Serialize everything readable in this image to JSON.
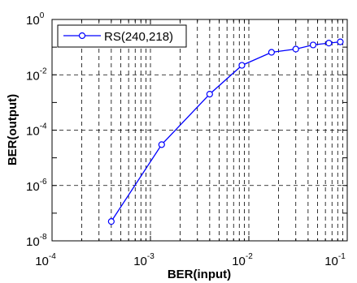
{
  "chart_data": {
    "type": "line",
    "xlabel": "BER(input)",
    "ylabel": "BER(output)",
    "xscale": "log",
    "yscale": "log",
    "xlim": [
      0.0001,
      0.1
    ],
    "ylim": [
      1e-08,
      1
    ],
    "grid": true,
    "legend_position": "top-left",
    "x_ticks": [
      {
        "base": "10",
        "exp": "-4"
      },
      {
        "base": "10",
        "exp": "-3"
      },
      {
        "base": "10",
        "exp": "-2"
      },
      {
        "base": "10",
        "exp": "-1"
      }
    ],
    "y_ticks": [
      {
        "base": "10",
        "exp": "-8"
      },
      {
        "base": "10",
        "exp": "-6"
      },
      {
        "base": "10",
        "exp": "-4"
      },
      {
        "base": "10",
        "exp": "-2"
      },
      {
        "base": "10",
        "exp": "0"
      }
    ],
    "series": [
      {
        "name": "RS(240,218)",
        "color": "#0000ff",
        "marker": "circle",
        "x": [
          0.0004,
          0.0013,
          0.004,
          0.0085,
          0.017,
          0.03,
          0.045,
          0.065,
          0.085
        ],
        "y": [
          5e-08,
          3e-05,
          0.002,
          0.022,
          0.065,
          0.085,
          0.12,
          0.14,
          0.155
        ]
      }
    ]
  }
}
